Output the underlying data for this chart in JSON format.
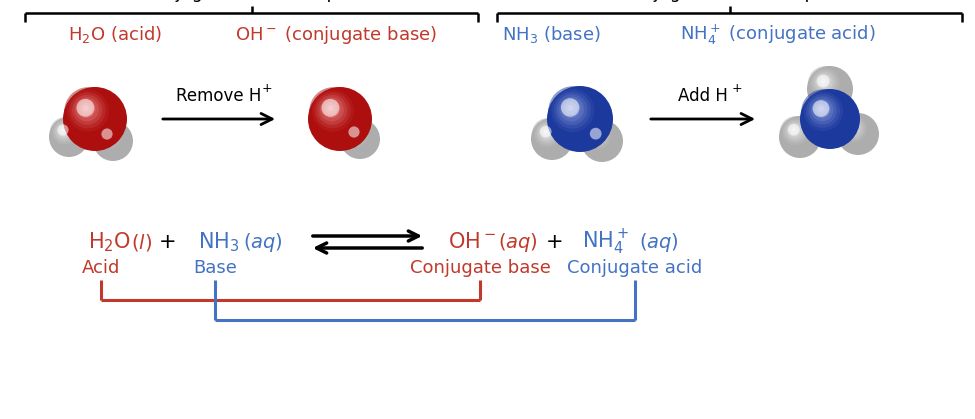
{
  "bg_color": "#ffffff",
  "red_color": "#c0392b",
  "blue_color": "#4472c4",
  "black_color": "#1a1a1a",
  "brace_label_left": "Conjugate acid-base pair",
  "brace_label_right": "Conjugate acid-base pair",
  "remove_h": "Remove H",
  "add_h": "Add H",
  "acid_label": "Acid",
  "base_label": "Base",
  "conj_base_label": "Conjugate base",
  "conj_acid_label": "Conjugate acid",
  "mol_red_dark": "#cc1111",
  "mol_red_light": "#ff6666",
  "mol_blue_dark": "#2244aa",
  "mol_blue_mid": "#3355cc",
  "mol_blue_light": "#6688ee",
  "mol_white_dark": "#aaaaaa",
  "mol_white_mid": "#dddddd",
  "mol_white_light": "#ffffff",
  "title_fontsize": 12.5,
  "label_fontsize": 13,
  "eq_fontsize": 15,
  "sub_fontsize": 12
}
